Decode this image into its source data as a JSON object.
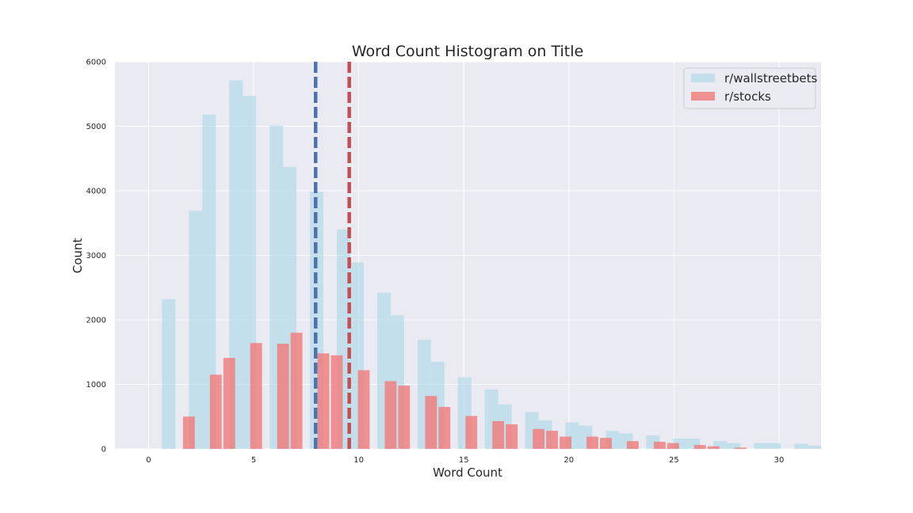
{
  "chart_data": {
    "type": "bar",
    "title": "Word Count Histogram on Title",
    "xlabel": "Word Count",
    "ylabel": "Count",
    "xlim": [
      -1.6,
      32.0
    ],
    "ylim": [
      0,
      6000
    ],
    "xticks": [
      0,
      5,
      10,
      15,
      20,
      25,
      30
    ],
    "yticks": [
      0,
      1000,
      2000,
      3000,
      4000,
      5000,
      6000
    ],
    "grid": true,
    "legend_position": "top-right",
    "series": [
      {
        "name": "r/wallstreetbets",
        "color": "#add8e6",
        "opacity": 0.65,
        "bin_width": 0.64,
        "bins": [
          {
            "x": 0.32,
            "value": 0
          },
          {
            "x": 0.96,
            "value": 2320
          },
          {
            "x": 2.24,
            "value": 3690
          },
          {
            "x": 2.88,
            "value": 5180
          },
          {
            "x": 4.16,
            "value": 5710
          },
          {
            "x": 4.8,
            "value": 5470
          },
          {
            "x": 6.08,
            "value": 5010
          },
          {
            "x": 6.72,
            "value": 4370
          },
          {
            "x": 8.0,
            "value": 3990
          },
          {
            "x": 9.28,
            "value": 3400
          },
          {
            "x": 9.92,
            "value": 2890
          },
          {
            "x": 11.2,
            "value": 2420
          },
          {
            "x": 11.84,
            "value": 2070
          },
          {
            "x": 13.12,
            "value": 1690
          },
          {
            "x": 13.76,
            "value": 1350
          },
          {
            "x": 15.04,
            "value": 1110
          },
          {
            "x": 16.32,
            "value": 920
          },
          {
            "x": 16.96,
            "value": 690
          },
          {
            "x": 18.24,
            "value": 570
          },
          {
            "x": 18.88,
            "value": 440
          },
          {
            "x": 20.16,
            "value": 410
          },
          {
            "x": 20.8,
            "value": 360
          },
          {
            "x": 22.08,
            "value": 280
          },
          {
            "x": 22.72,
            "value": 240
          },
          {
            "x": 24.0,
            "value": 210
          },
          {
            "x": 25.28,
            "value": 160
          },
          {
            "x": 25.92,
            "value": 160
          },
          {
            "x": 27.2,
            "value": 120
          },
          {
            "x": 27.84,
            "value": 90
          },
          {
            "x": 29.12,
            "value": 90
          },
          {
            "x": 29.76,
            "value": 90
          },
          {
            "x": 31.04,
            "value": 80
          },
          {
            "x": 31.68,
            "value": 50
          }
        ]
      },
      {
        "name": "r/stocks",
        "color": "#f08080",
        "opacity": 0.85,
        "bin_width": 0.56,
        "bins": [
          {
            "x": 1.92,
            "value": 500
          },
          {
            "x": 3.2,
            "value": 1150
          },
          {
            "x": 3.84,
            "value": 1410
          },
          {
            "x": 5.12,
            "value": 1640
          },
          {
            "x": 6.4,
            "value": 1630
          },
          {
            "x": 7.04,
            "value": 1800
          },
          {
            "x": 8.32,
            "value": 1480
          },
          {
            "x": 8.96,
            "value": 1450
          },
          {
            "x": 10.24,
            "value": 1220
          },
          {
            "x": 11.52,
            "value": 1050
          },
          {
            "x": 12.16,
            "value": 980
          },
          {
            "x": 13.44,
            "value": 820
          },
          {
            "x": 14.08,
            "value": 650
          },
          {
            "x": 15.36,
            "value": 510
          },
          {
            "x": 16.64,
            "value": 430
          },
          {
            "x": 17.28,
            "value": 380
          },
          {
            "x": 18.56,
            "value": 310
          },
          {
            "x": 19.2,
            "value": 280
          },
          {
            "x": 19.84,
            "value": 190
          },
          {
            "x": 21.12,
            "value": 190
          },
          {
            "x": 21.76,
            "value": 170
          },
          {
            "x": 23.04,
            "value": 120
          },
          {
            "x": 24.32,
            "value": 110
          },
          {
            "x": 24.96,
            "value": 90
          },
          {
            "x": 26.24,
            "value": 60
          },
          {
            "x": 26.88,
            "value": 40
          },
          {
            "x": 28.16,
            "value": 20
          }
        ]
      }
    ],
    "reference_lines": [
      {
        "x": 7.95,
        "color": "#4c72b0",
        "style": "dashed"
      },
      {
        "x": 9.55,
        "color": "#c44e52",
        "style": "dashed"
      }
    ]
  }
}
